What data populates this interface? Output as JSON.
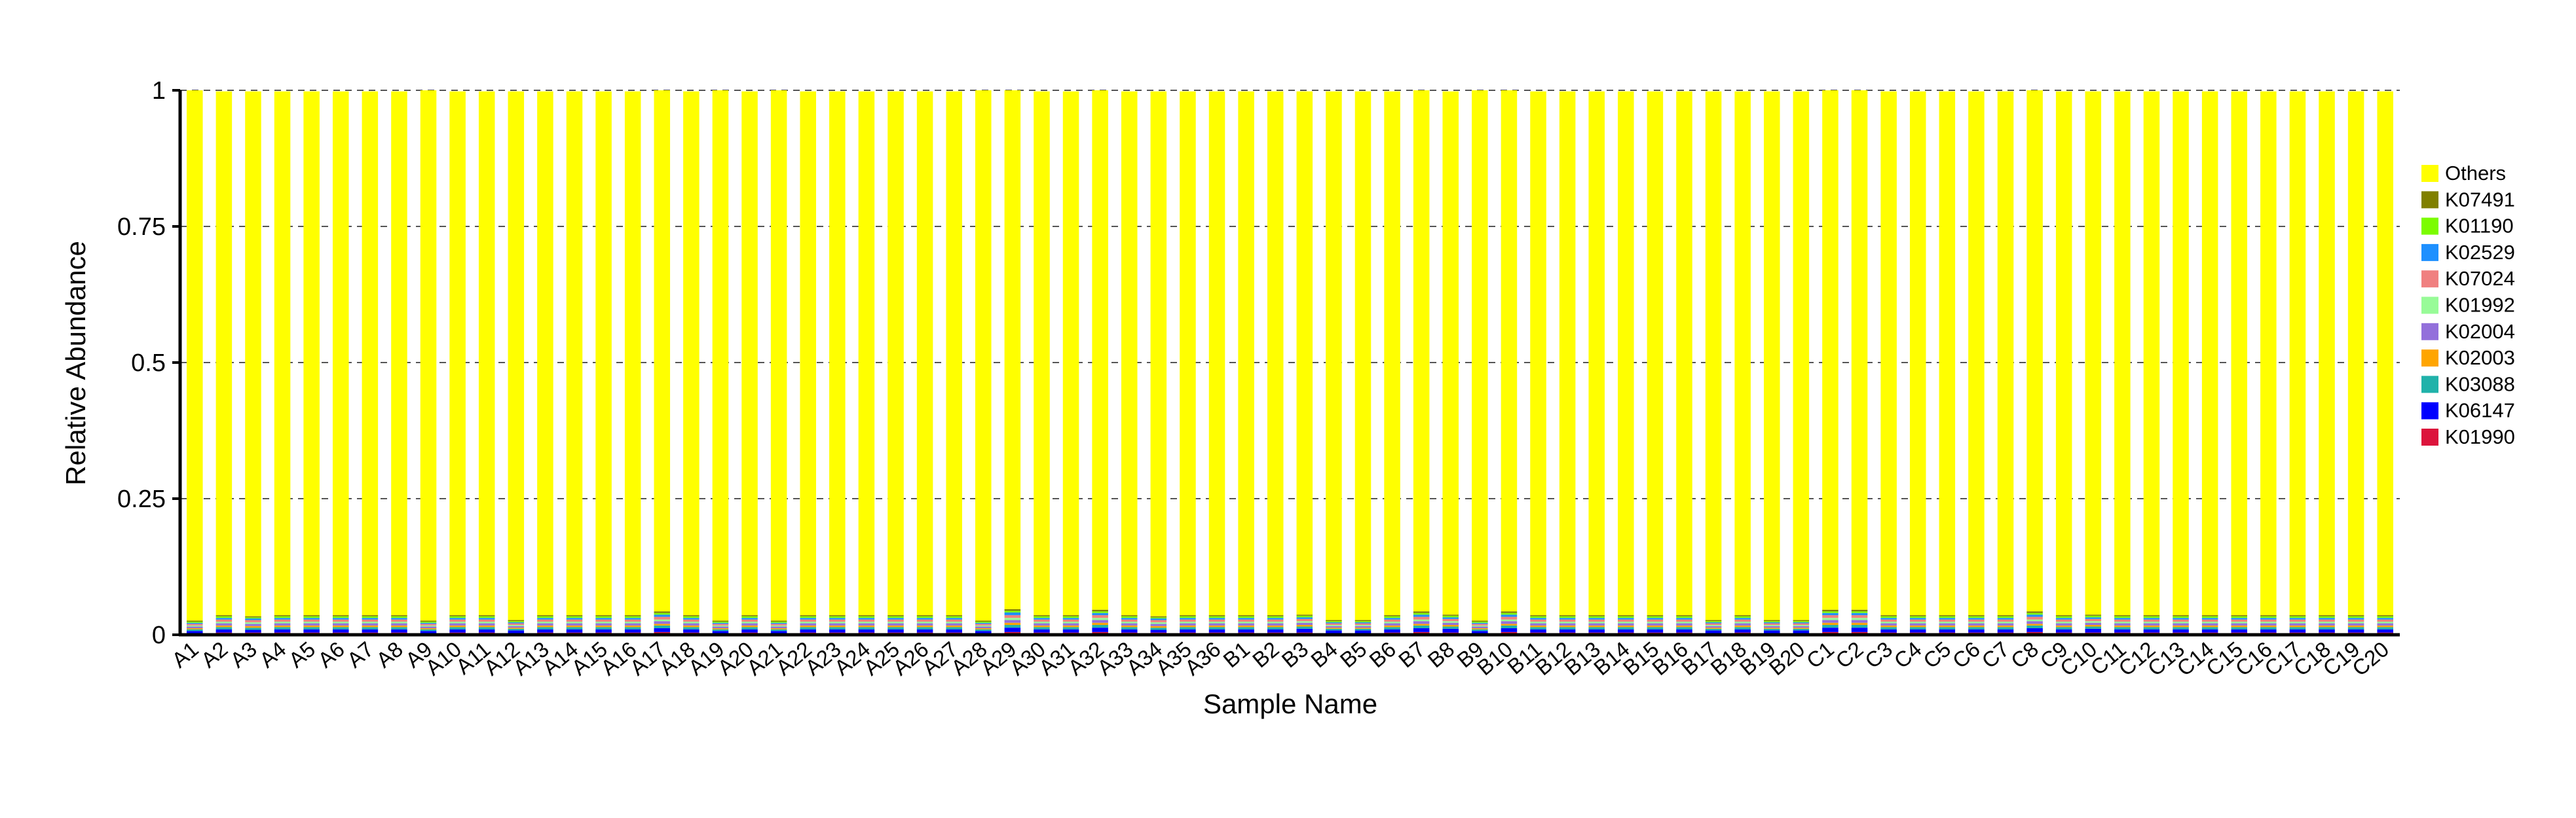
{
  "chart_data": {
    "type": "bar",
    "stacked": true,
    "xlabel": "Sample Name",
    "ylabel": "Relative Abundance",
    "ylim": [
      0,
      1
    ],
    "yticks": [
      0,
      0.25,
      0.5,
      0.75,
      1
    ],
    "ytick_labels": [
      "0",
      "0.25",
      "0.5",
      "0.75",
      "1"
    ],
    "grid": "horizontal dashed",
    "legend_position": "right",
    "categories": [
      "A1",
      "A2",
      "A3",
      "A4",
      "A5",
      "A6",
      "A7",
      "A8",
      "A9",
      "A10",
      "A11",
      "A12",
      "A13",
      "A14",
      "A15",
      "A16",
      "A17",
      "A18",
      "A19",
      "A20",
      "A21",
      "A22",
      "A23",
      "A24",
      "A25",
      "A26",
      "A27",
      "A28",
      "A29",
      "A30",
      "A31",
      "A32",
      "A33",
      "A34",
      "A35",
      "A36",
      "B1",
      "B2",
      "B3",
      "B4",
      "B5",
      "B6",
      "B7",
      "B8",
      "B9",
      "B10",
      "B11",
      "B12",
      "B13",
      "B14",
      "B15",
      "B16",
      "B17",
      "B18",
      "B19",
      "B20",
      "C1",
      "C2",
      "C3",
      "C4",
      "C5",
      "C6",
      "C7",
      "C8",
      "C9",
      "C10",
      "C11",
      "C12",
      "C13",
      "C14",
      "C15",
      "C16",
      "C17",
      "C18",
      "C19",
      "C20"
    ],
    "series": [
      {
        "name": "K01990",
        "color": "#DC143C",
        "values": [
          0.003,
          0.004,
          0.004,
          0.004,
          0.004,
          0.004,
          0.004,
          0.004,
          0.003,
          0.004,
          0.004,
          0.003,
          0.004,
          0.004,
          0.004,
          0.004,
          0.005,
          0.004,
          0.003,
          0.004,
          0.003,
          0.004,
          0.004,
          0.004,
          0.004,
          0.004,
          0.004,
          0.003,
          0.005,
          0.004,
          0.004,
          0.005,
          0.004,
          0.004,
          0.004,
          0.004,
          0.004,
          0.004,
          0.004,
          0.003,
          0.003,
          0.004,
          0.005,
          0.004,
          0.003,
          0.005,
          0.004,
          0.004,
          0.004,
          0.004,
          0.004,
          0.004,
          0.003,
          0.004,
          0.003,
          0.003,
          0.005,
          0.005,
          0.004,
          0.004,
          0.004,
          0.004,
          0.004,
          0.005,
          0.004,
          0.004,
          0.004,
          0.004,
          0.004,
          0.004,
          0.004,
          0.004,
          0.004,
          0.004,
          0.004,
          0.004
        ]
      },
      {
        "name": "K06147",
        "color": "#0000FF",
        "values": [
          0.004,
          0.006,
          0.005,
          0.006,
          0.006,
          0.006,
          0.006,
          0.006,
          0.004,
          0.006,
          0.006,
          0.005,
          0.006,
          0.006,
          0.006,
          0.006,
          0.007,
          0.006,
          0.004,
          0.006,
          0.004,
          0.006,
          0.006,
          0.006,
          0.006,
          0.006,
          0.006,
          0.004,
          0.008,
          0.006,
          0.006,
          0.008,
          0.006,
          0.005,
          0.006,
          0.006,
          0.006,
          0.006,
          0.007,
          0.005,
          0.005,
          0.006,
          0.007,
          0.007,
          0.004,
          0.007,
          0.006,
          0.006,
          0.006,
          0.006,
          0.006,
          0.006,
          0.005,
          0.006,
          0.005,
          0.005,
          0.008,
          0.008,
          0.006,
          0.006,
          0.006,
          0.006,
          0.006,
          0.007,
          0.006,
          0.007,
          0.006,
          0.006,
          0.006,
          0.006,
          0.006,
          0.006,
          0.006,
          0.006,
          0.006,
          0.006
        ]
      },
      {
        "name": "K03088",
        "color": "#20B2AA",
        "values": [
          0.003,
          0.004,
          0.004,
          0.004,
          0.004,
          0.004,
          0.004,
          0.004,
          0.003,
          0.004,
          0.004,
          0.003,
          0.004,
          0.004,
          0.004,
          0.004,
          0.005,
          0.004,
          0.003,
          0.004,
          0.003,
          0.004,
          0.004,
          0.004,
          0.004,
          0.004,
          0.004,
          0.003,
          0.005,
          0.004,
          0.004,
          0.005,
          0.004,
          0.004,
          0.004,
          0.004,
          0.004,
          0.004,
          0.004,
          0.003,
          0.003,
          0.004,
          0.005,
          0.004,
          0.003,
          0.005,
          0.004,
          0.004,
          0.004,
          0.004,
          0.004,
          0.004,
          0.003,
          0.004,
          0.003,
          0.003,
          0.005,
          0.005,
          0.004,
          0.004,
          0.004,
          0.004,
          0.004,
          0.005,
          0.004,
          0.004,
          0.004,
          0.004,
          0.004,
          0.004,
          0.004,
          0.004,
          0.004,
          0.004,
          0.004,
          0.004
        ]
      },
      {
        "name": "K02003",
        "color": "#FFA500",
        "values": [
          0.002,
          0.003,
          0.003,
          0.003,
          0.003,
          0.003,
          0.003,
          0.003,
          0.002,
          0.003,
          0.003,
          0.002,
          0.003,
          0.003,
          0.003,
          0.003,
          0.003,
          0.003,
          0.002,
          0.003,
          0.002,
          0.003,
          0.003,
          0.003,
          0.003,
          0.003,
          0.003,
          0.002,
          0.004,
          0.003,
          0.003,
          0.004,
          0.003,
          0.003,
          0.003,
          0.003,
          0.003,
          0.003,
          0.003,
          0.002,
          0.002,
          0.003,
          0.003,
          0.003,
          0.002,
          0.003,
          0.003,
          0.003,
          0.003,
          0.003,
          0.003,
          0.003,
          0.002,
          0.003,
          0.002,
          0.002,
          0.004,
          0.004,
          0.003,
          0.003,
          0.003,
          0.003,
          0.003,
          0.003,
          0.003,
          0.003,
          0.003,
          0.003,
          0.003,
          0.003,
          0.003,
          0.003,
          0.003,
          0.003,
          0.003,
          0.003
        ]
      },
      {
        "name": "K02004",
        "color": "#9370DB",
        "values": [
          0.003,
          0.004,
          0.004,
          0.004,
          0.004,
          0.004,
          0.004,
          0.004,
          0.003,
          0.004,
          0.004,
          0.003,
          0.004,
          0.004,
          0.004,
          0.004,
          0.005,
          0.004,
          0.003,
          0.004,
          0.003,
          0.004,
          0.004,
          0.004,
          0.004,
          0.004,
          0.004,
          0.003,
          0.005,
          0.004,
          0.004,
          0.005,
          0.004,
          0.004,
          0.004,
          0.004,
          0.004,
          0.004,
          0.004,
          0.003,
          0.003,
          0.004,
          0.005,
          0.004,
          0.003,
          0.005,
          0.004,
          0.004,
          0.004,
          0.004,
          0.004,
          0.004,
          0.003,
          0.004,
          0.003,
          0.003,
          0.005,
          0.005,
          0.004,
          0.004,
          0.004,
          0.004,
          0.004,
          0.005,
          0.004,
          0.004,
          0.004,
          0.004,
          0.004,
          0.004,
          0.004,
          0.004,
          0.004,
          0.004,
          0.004,
          0.004
        ]
      },
      {
        "name": "K01992",
        "color": "#98FB98",
        "values": [
          0.002,
          0.003,
          0.003,
          0.003,
          0.003,
          0.003,
          0.003,
          0.003,
          0.002,
          0.003,
          0.003,
          0.002,
          0.003,
          0.003,
          0.003,
          0.003,
          0.003,
          0.003,
          0.002,
          0.003,
          0.002,
          0.003,
          0.003,
          0.003,
          0.003,
          0.003,
          0.003,
          0.002,
          0.004,
          0.003,
          0.003,
          0.004,
          0.003,
          0.003,
          0.003,
          0.003,
          0.003,
          0.003,
          0.003,
          0.002,
          0.002,
          0.003,
          0.003,
          0.003,
          0.002,
          0.003,
          0.003,
          0.003,
          0.003,
          0.003,
          0.003,
          0.003,
          0.002,
          0.003,
          0.002,
          0.002,
          0.004,
          0.004,
          0.003,
          0.003,
          0.003,
          0.003,
          0.003,
          0.003,
          0.003,
          0.003,
          0.003,
          0.003,
          0.003,
          0.003,
          0.003,
          0.003,
          0.003,
          0.003,
          0.003,
          0.003
        ]
      },
      {
        "name": "K07024",
        "color": "#F08080",
        "values": [
          0.003,
          0.004,
          0.004,
          0.004,
          0.004,
          0.004,
          0.004,
          0.004,
          0.003,
          0.004,
          0.004,
          0.003,
          0.004,
          0.004,
          0.004,
          0.004,
          0.005,
          0.004,
          0.003,
          0.004,
          0.003,
          0.004,
          0.004,
          0.004,
          0.004,
          0.004,
          0.004,
          0.003,
          0.005,
          0.004,
          0.004,
          0.005,
          0.004,
          0.004,
          0.004,
          0.004,
          0.004,
          0.004,
          0.004,
          0.003,
          0.003,
          0.004,
          0.005,
          0.004,
          0.003,
          0.005,
          0.004,
          0.004,
          0.004,
          0.004,
          0.004,
          0.004,
          0.003,
          0.004,
          0.003,
          0.003,
          0.005,
          0.005,
          0.004,
          0.004,
          0.004,
          0.004,
          0.004,
          0.005,
          0.004,
          0.004,
          0.004,
          0.004,
          0.004,
          0.004,
          0.004,
          0.004,
          0.004,
          0.004,
          0.004,
          0.004
        ]
      },
      {
        "name": "K02529",
        "color": "#1E90FF",
        "values": [
          0.002,
          0.003,
          0.003,
          0.003,
          0.003,
          0.003,
          0.003,
          0.003,
          0.002,
          0.003,
          0.003,
          0.002,
          0.003,
          0.003,
          0.003,
          0.003,
          0.004,
          0.003,
          0.002,
          0.003,
          0.002,
          0.003,
          0.003,
          0.003,
          0.003,
          0.003,
          0.003,
          0.002,
          0.005,
          0.003,
          0.003,
          0.004,
          0.003,
          0.003,
          0.003,
          0.003,
          0.003,
          0.003,
          0.003,
          0.002,
          0.002,
          0.003,
          0.004,
          0.003,
          0.002,
          0.004,
          0.003,
          0.003,
          0.003,
          0.003,
          0.003,
          0.003,
          0.002,
          0.003,
          0.002,
          0.002,
          0.004,
          0.004,
          0.003,
          0.003,
          0.003,
          0.003,
          0.003,
          0.004,
          0.003,
          0.003,
          0.003,
          0.003,
          0.003,
          0.003,
          0.003,
          0.003,
          0.003,
          0.003,
          0.003,
          0.003
        ]
      },
      {
        "name": "K01190",
        "color": "#7CFC00",
        "values": [
          0.002,
          0.003,
          0.002,
          0.003,
          0.003,
          0.003,
          0.003,
          0.003,
          0.002,
          0.003,
          0.003,
          0.002,
          0.003,
          0.003,
          0.003,
          0.003,
          0.003,
          0.003,
          0.002,
          0.003,
          0.002,
          0.003,
          0.003,
          0.003,
          0.003,
          0.003,
          0.003,
          0.002,
          0.003,
          0.003,
          0.003,
          0.003,
          0.003,
          0.002,
          0.003,
          0.003,
          0.003,
          0.003,
          0.003,
          0.002,
          0.002,
          0.003,
          0.003,
          0.003,
          0.002,
          0.003,
          0.003,
          0.003,
          0.003,
          0.003,
          0.003,
          0.003,
          0.002,
          0.003,
          0.002,
          0.002,
          0.003,
          0.003,
          0.003,
          0.003,
          0.003,
          0.003,
          0.003,
          0.003,
          0.003,
          0.003,
          0.003,
          0.003,
          0.003,
          0.003,
          0.003,
          0.003,
          0.003,
          0.003,
          0.003,
          0.003
        ]
      },
      {
        "name": "K07491",
        "color": "#808000",
        "values": [
          0.002,
          0.002,
          0.002,
          0.002,
          0.002,
          0.002,
          0.002,
          0.002,
          0.002,
          0.002,
          0.002,
          0.002,
          0.002,
          0.002,
          0.002,
          0.002,
          0.003,
          0.002,
          0.002,
          0.002,
          0.002,
          0.002,
          0.002,
          0.002,
          0.002,
          0.002,
          0.002,
          0.002,
          0.003,
          0.002,
          0.002,
          0.003,
          0.002,
          0.002,
          0.002,
          0.002,
          0.002,
          0.002,
          0.002,
          0.002,
          0.002,
          0.002,
          0.003,
          0.002,
          0.002,
          0.003,
          0.002,
          0.002,
          0.002,
          0.002,
          0.002,
          0.002,
          0.002,
          0.002,
          0.002,
          0.002,
          0.003,
          0.003,
          0.002,
          0.002,
          0.002,
          0.002,
          0.002,
          0.003,
          0.002,
          0.002,
          0.002,
          0.002,
          0.002,
          0.002,
          0.002,
          0.002,
          0.002,
          0.002,
          0.002,
          0.002
        ]
      },
      {
        "name": "Others",
        "color": "#FFFF00",
        "values": [
          0.974,
          0.962,
          0.964,
          0.962,
          0.962,
          0.962,
          0.962,
          0.962,
          0.974,
          0.962,
          0.962,
          0.971,
          0.962,
          0.962,
          0.962,
          0.962,
          0.957,
          0.962,
          0.974,
          0.962,
          0.974,
          0.962,
          0.962,
          0.962,
          0.962,
          0.962,
          0.962,
          0.974,
          0.953,
          0.962,
          0.962,
          0.954,
          0.962,
          0.964,
          0.962,
          0.962,
          0.962,
          0.962,
          0.961,
          0.971,
          0.971,
          0.962,
          0.957,
          0.961,
          0.974,
          0.957,
          0.962,
          0.962,
          0.962,
          0.962,
          0.962,
          0.962,
          0.971,
          0.962,
          0.971,
          0.971,
          0.954,
          0.954,
          0.962,
          0.962,
          0.962,
          0.962,
          0.962,
          0.957,
          0.962,
          0.961,
          0.962,
          0.962,
          0.962,
          0.962,
          0.962,
          0.962,
          0.962,
          0.962,
          0.962,
          0.962
        ]
      }
    ]
  }
}
